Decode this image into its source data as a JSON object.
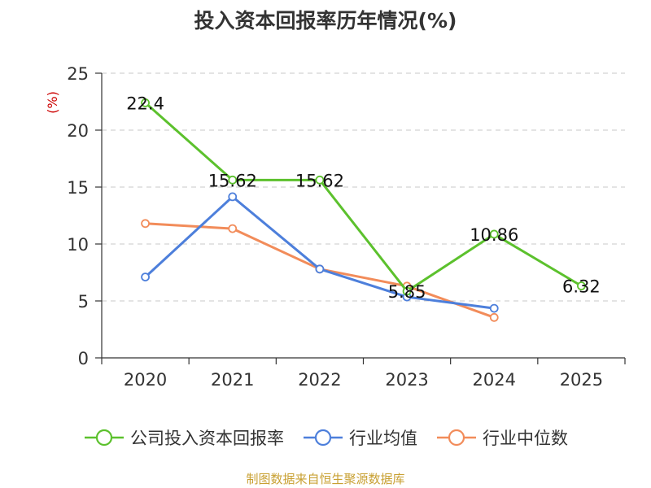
{
  "chart_data": {
    "type": "line",
    "title": "投入资本回报率历年情况(%)",
    "ylabel": "(%)",
    "xlabel": "",
    "ylim": [
      0,
      25
    ],
    "yticks": [
      0,
      5,
      10,
      15,
      20,
      25
    ],
    "categories": [
      "2020",
      "2021",
      "2022",
      "2023",
      "2024",
      "2025"
    ],
    "series": [
      {
        "name": "公司投入资本回报率",
        "color": "#5cc12d",
        "values": [
          22.4,
          15.62,
          15.62,
          5.85,
          10.86,
          6.32
        ],
        "labels": [
          "22.4",
          "15.62",
          "15.62",
          "5.85",
          "10.86",
          "6.32"
        ]
      },
      {
        "name": "行业均值",
        "color": "#4d7fdb",
        "values": [
          7.1,
          14.15,
          7.8,
          5.35,
          4.35,
          null
        ]
      },
      {
        "name": "行业中位数",
        "color": "#f28c5a",
        "values": [
          11.8,
          11.35,
          7.8,
          6.3,
          3.55,
          null
        ]
      }
    ],
    "grid": true,
    "legend_position": "bottom"
  },
  "footer": {
    "source": "制图数据来自恒生聚源数据库"
  }
}
